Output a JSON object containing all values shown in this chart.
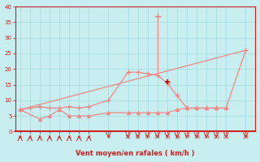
{
  "xlabel": "Vent moyen/en rafales ( km/h )",
  "background_color": "#c8eef0",
  "grid_color": "#a0d8dc",
  "line_color": "#f08888",
  "red_dot_color": "#cc0000",
  "x_hours": [
    0,
    1,
    2,
    3,
    4,
    5,
    6,
    7,
    9,
    11,
    12,
    13,
    14,
    15,
    16,
    17,
    18,
    19,
    20,
    21,
    23
  ],
  "rafales_y": [
    7,
    7.5,
    8,
    7.5,
    7.5,
    8,
    7.5,
    8,
    10,
    19,
    19,
    18.5,
    18,
    15.5,
    11.5,
    7.5,
    7.5,
    7.5,
    7.5,
    7.5,
    26
  ],
  "moyen_y": [
    7,
    null,
    4,
    5,
    7,
    5,
    5,
    5,
    6,
    6,
    6,
    6,
    6,
    6,
    7,
    7.5,
    7.5,
    7.5,
    7.5,
    7.5,
    null
  ],
  "trend_x": [
    0,
    23
  ],
  "trend_y": [
    7,
    26
  ],
  "peak_x": 14,
  "peak_y": 37,
  "red_cross_x": 15,
  "red_cross_y": 16,
  "ylim": [
    0,
    40
  ],
  "yticks": [
    0,
    5,
    10,
    15,
    20,
    25,
    30,
    35,
    40
  ],
  "xticks": [
    0,
    1,
    2,
    3,
    4,
    5,
    6,
    7,
    9,
    11,
    12,
    13,
    14,
    15,
    16,
    17,
    18,
    19,
    20,
    21,
    23
  ],
  "arrows_up_x": [
    0,
    1,
    2,
    3,
    4,
    5,
    6,
    7
  ],
  "arrows_down_x": [
    9,
    11,
    12,
    13,
    14,
    15,
    16,
    17,
    18,
    19,
    20,
    21,
    23
  ]
}
